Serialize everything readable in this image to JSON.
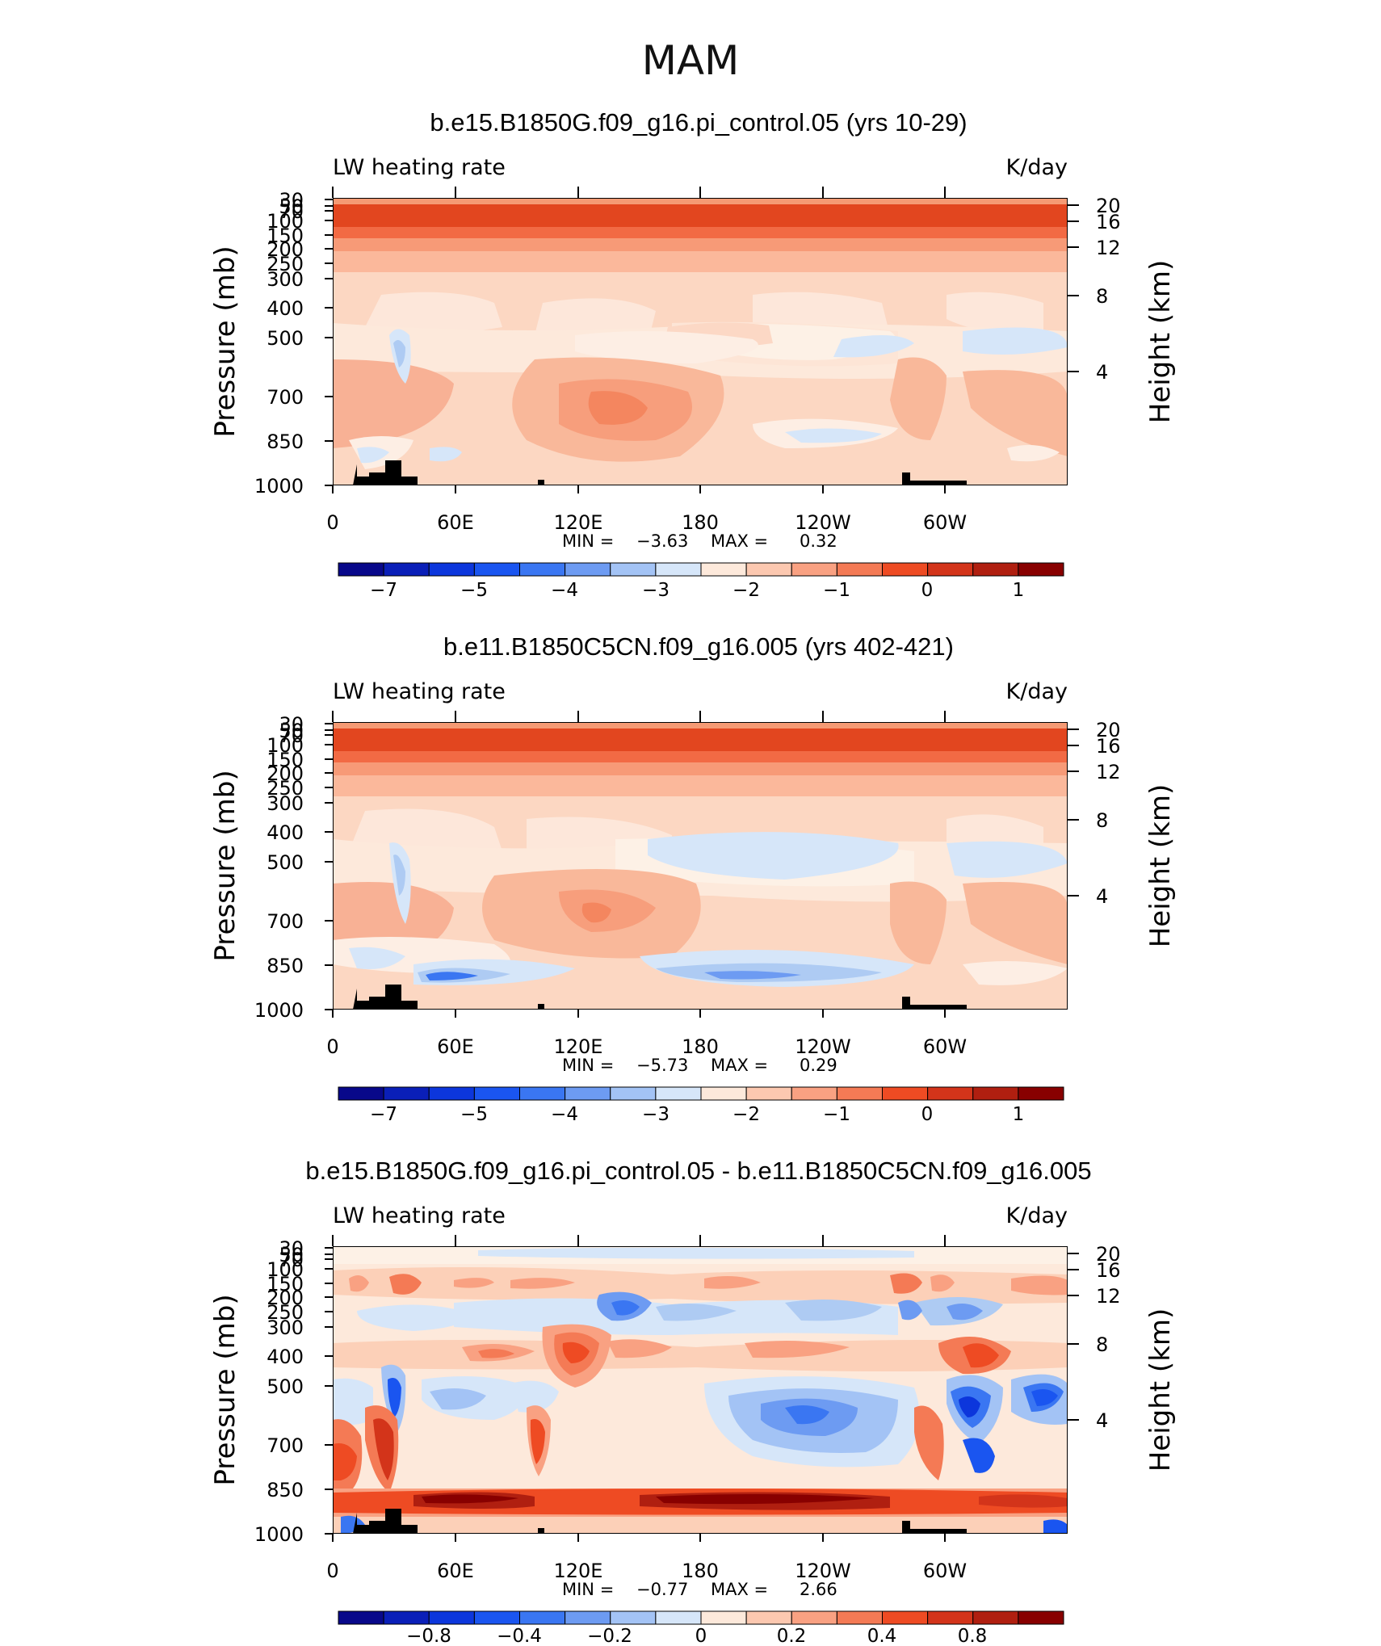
{
  "figure_title": "MAM",
  "chart_data": [
    {
      "type": "heatmap",
      "title": "b.e15.B1850G.f09_g16.pi_control.05 (yrs 10-29)",
      "left_string": "LW heating rate",
      "right_string": "K/day",
      "ylabel": "Pressure (mb)",
      "ylabel_right": "Height (km)",
      "x_ticks": [
        "0",
        "60E",
        "120E",
        "180",
        "120W",
        "60W"
      ],
      "y_ticks": [
        "1000",
        "850",
        "700",
        "500",
        "400",
        "300",
        "250",
        "200",
        "150",
        "100",
        "70",
        "50",
        "30"
      ],
      "y_ticks_right": [
        "20",
        "16",
        "12",
        "8",
        "4"
      ],
      "min_label": "MIN =",
      "min_value": "−3.63",
      "max_label": "MAX =",
      "max_value": "0.32",
      "xlim": [
        0,
        360
      ],
      "ylim": [
        1000,
        30
      ],
      "colorbar_labels": [
        "−7",
        "−5",
        "−4",
        "−3",
        "−2",
        "−1",
        "0",
        "1"
      ]
    },
    {
      "type": "heatmap",
      "title": "b.e11.B1850C5CN.f09_g16.005 (yrs 402-421)",
      "left_string": "LW heating rate",
      "right_string": "K/day",
      "ylabel": "Pressure (mb)",
      "ylabel_right": "Height (km)",
      "x_ticks": [
        "0",
        "60E",
        "120E",
        "180",
        "120W",
        "60W"
      ],
      "y_ticks": [
        "1000",
        "850",
        "700",
        "500",
        "400",
        "300",
        "250",
        "200",
        "150",
        "100",
        "70",
        "50",
        "30"
      ],
      "y_ticks_right": [
        "20",
        "16",
        "12",
        "8",
        "4"
      ],
      "min_label": "MIN =",
      "min_value": "−5.73",
      "max_label": "MAX =",
      "max_value": "0.29",
      "xlim": [
        0,
        360
      ],
      "ylim": [
        1000,
        30
      ],
      "colorbar_labels": [
        "−7",
        "−5",
        "−4",
        "−3",
        "−2",
        "−1",
        "0",
        "1"
      ]
    },
    {
      "type": "heatmap",
      "title": "b.e15.B1850G.f09_g16.pi_control.05 - b.e11.B1850C5CN.f09_g16.005",
      "left_string": "LW heating rate",
      "right_string": "K/day",
      "ylabel": "Pressure (mb)",
      "ylabel_right": "Height (km)",
      "x_ticks": [
        "0",
        "60E",
        "120E",
        "180",
        "120W",
        "60W"
      ],
      "y_ticks": [
        "1000",
        "850",
        "700",
        "500",
        "400",
        "300",
        "250",
        "200",
        "150",
        "100",
        "70",
        "50",
        "30"
      ],
      "y_ticks_right": [
        "20",
        "16",
        "12",
        "8",
        "4"
      ],
      "min_label": "MIN =",
      "min_value": "−0.77",
      "max_label": "MAX =",
      "max_value": "2.66",
      "xlim": [
        0,
        360
      ],
      "ylim": [
        1000,
        30
      ],
      "colorbar_labels": [
        "−0.8",
        "−0.4",
        "−0.2",
        "0",
        "0.2",
        "0.4",
        "0.8"
      ]
    }
  ]
}
